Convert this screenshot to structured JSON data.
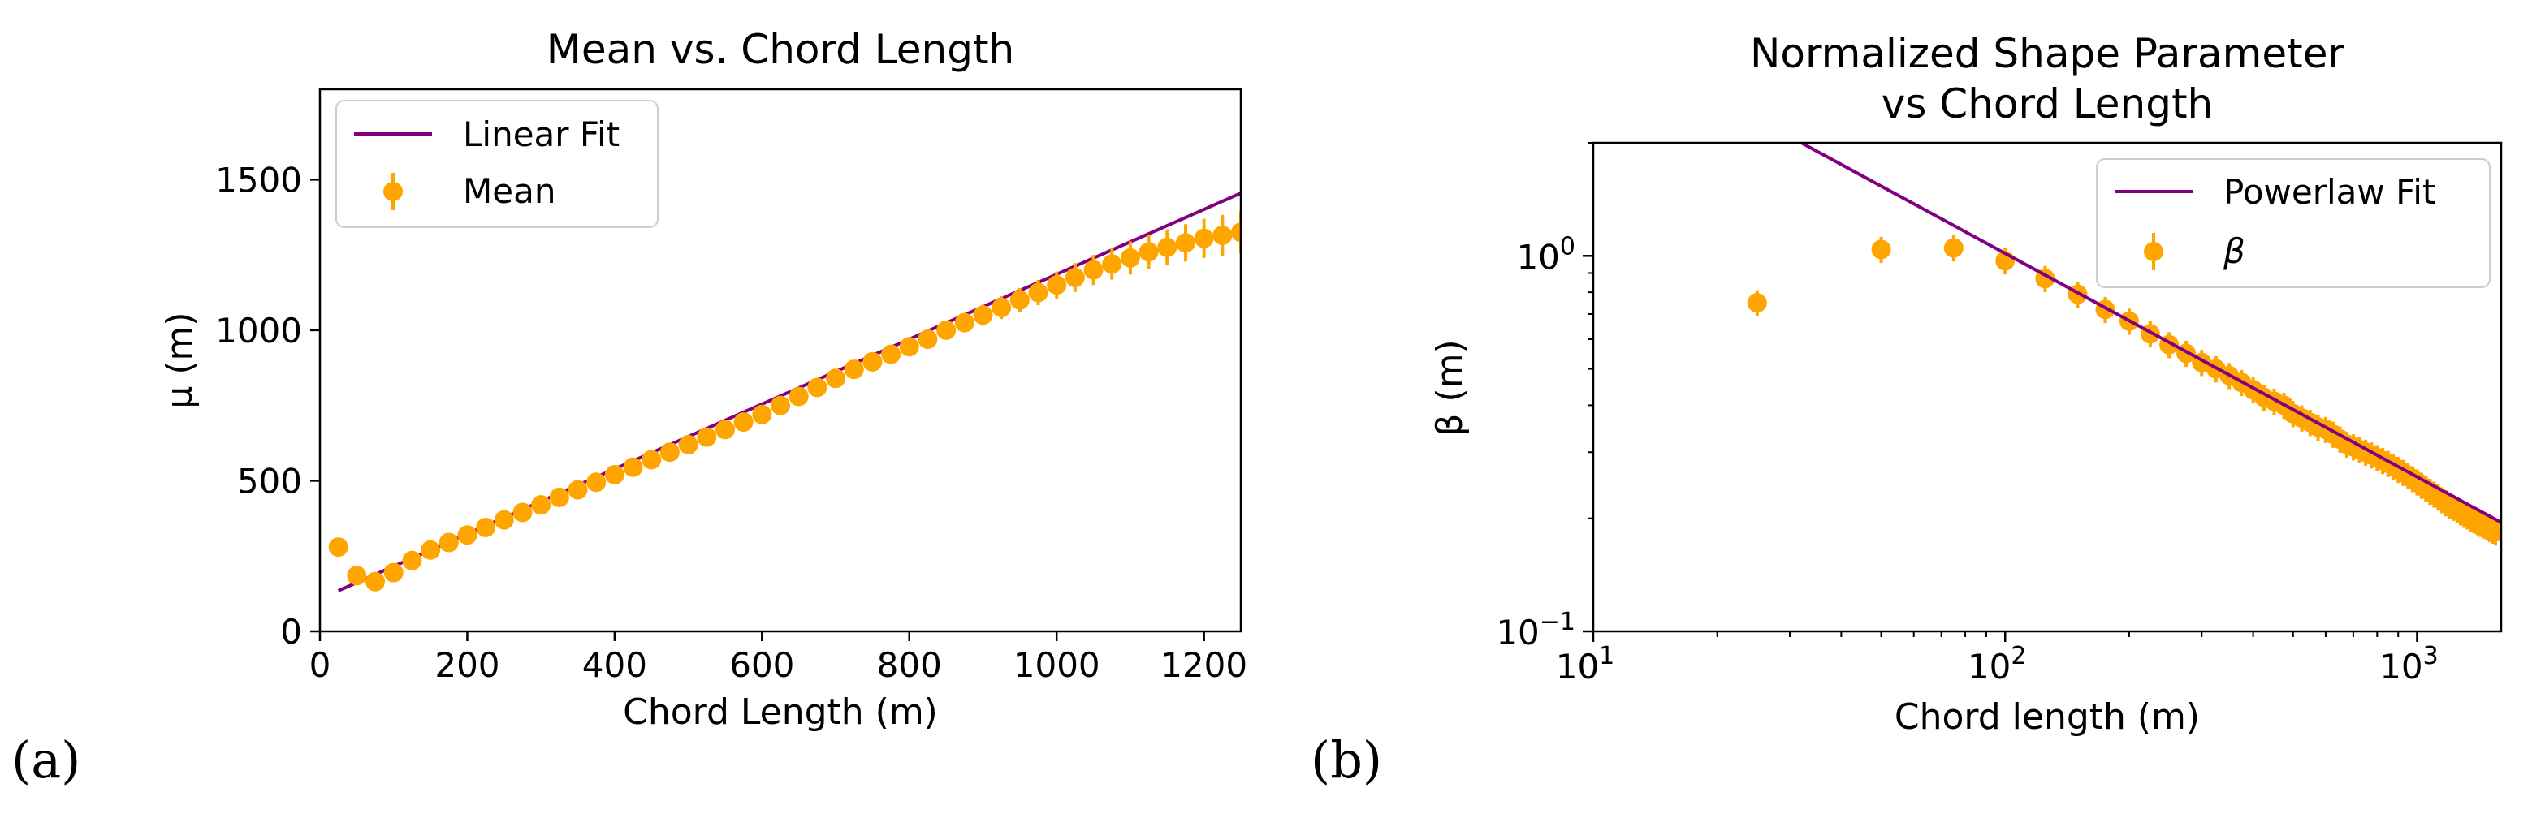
{
  "chart_data": [
    {
      "type": "scatter",
      "panel_label": "(a)",
      "title": "Mean vs. Chord Length",
      "xlabel": "Chord Length (m)",
      "ylabel": "μ (m)",
      "xlim": [
        0,
        1250
      ],
      "ylim": [
        0,
        1800
      ],
      "xticks": [
        0,
        200,
        400,
        600,
        800,
        1000,
        1200
      ],
      "xtick_labels": [
        "0",
        "200",
        "400",
        "600",
        "800",
        "1000",
        "1200"
      ],
      "yticks": [
        0,
        500,
        1000,
        1500
      ],
      "ytick_labels": [
        "0",
        "500",
        "1000",
        "1500"
      ],
      "legend_position": "top-left",
      "series": [
        {
          "name": "Linear Fit",
          "kind": "line",
          "color": "#800080",
          "x": [
            25,
            1250
          ],
          "y": [
            135,
            1455
          ]
        },
        {
          "name": "Mean",
          "kind": "errorbar",
          "color": "#FFA500",
          "x": [
            25,
            50,
            75,
            100,
            125,
            150,
            175,
            200,
            225,
            250,
            275,
            300,
            325,
            350,
            375,
            400,
            425,
            450,
            475,
            500,
            525,
            550,
            575,
            600,
            625,
            650,
            675,
            700,
            725,
            750,
            775,
            800,
            825,
            850,
            875,
            900,
            925,
            950,
            975,
            1000,
            1025,
            1050,
            1075,
            1100,
            1125,
            1150,
            1175,
            1200,
            1225,
            1250
          ],
          "y": [
            280,
            185,
            165,
            195,
            235,
            270,
            295,
            320,
            345,
            370,
            395,
            420,
            445,
            470,
            495,
            520,
            545,
            570,
            595,
            620,
            645,
            670,
            695,
            720,
            750,
            780,
            810,
            840,
            870,
            895,
            920,
            945,
            970,
            1000,
            1025,
            1050,
            1075,
            1100,
            1125,
            1150,
            1175,
            1200,
            1220,
            1240,
            1260,
            1275,
            1290,
            1305,
            1315,
            1325
          ],
          "err": [
            20,
            15,
            15,
            15,
            15,
            15,
            15,
            15,
            15,
            15,
            15,
            15,
            15,
            15,
            15,
            15,
            15,
            15,
            15,
            15,
            15,
            18,
            18,
            18,
            20,
            20,
            20,
            22,
            22,
            22,
            25,
            25,
            28,
            30,
            32,
            35,
            38,
            40,
            42,
            45,
            48,
            50,
            52,
            55,
            58,
            60,
            62,
            65,
            68,
            70
          ]
        }
      ]
    },
    {
      "type": "scatter",
      "panel_label": "(b)",
      "title": "Normalized Shape Parameter\nvs Chord Length",
      "title_lines": [
        "Normalized Shape Parameter",
        "vs Chord Length"
      ],
      "xlabel": "Chord length (m)",
      "ylabel": "β (m)",
      "xscale": "log",
      "yscale": "log",
      "xlim": [
        10,
        1600
      ],
      "ylim": [
        0.1,
        2.0
      ],
      "xticks": [
        10,
        100,
        1000
      ],
      "xtick_labels": [
        {
          "base": "10",
          "exp": "1"
        },
        {
          "base": "10",
          "exp": "2"
        },
        {
          "base": "10",
          "exp": "3"
        }
      ],
      "yticks": [
        0.1,
        1
      ],
      "ytick_labels": [
        {
          "base": "10",
          "exp": "−1"
        },
        {
          "base": "10",
          "exp": "0"
        }
      ],
      "legend_position": "top-right",
      "series": [
        {
          "name": "Powerlaw Fit",
          "kind": "line",
          "color": "#800080",
          "x": [
            32,
            1600
          ],
          "y": [
            2.0,
            0.195
          ]
        },
        {
          "name": "β",
          "kind": "errorbar",
          "color": "#FFA500",
          "x": [
            25,
            50,
            75,
            100,
            125,
            150,
            175,
            200,
            225,
            250,
            275,
            300,
            325,
            350,
            375,
            400,
            425,
            450,
            475,
            500,
            525,
            550,
            575,
            600,
            625,
            650,
            675,
            700,
            725,
            750,
            775,
            800,
            825,
            850,
            875,
            900,
            925,
            950,
            975,
            1000,
            1025,
            1050,
            1075,
            1100,
            1125,
            1150,
            1175,
            1200,
            1225,
            1250,
            1275,
            1300,
            1325,
            1350,
            1375,
            1400,
            1425,
            1450,
            1475,
            1500,
            1525,
            1550
          ],
          "y": [
            0.75,
            1.04,
            1.05,
            0.97,
            0.87,
            0.79,
            0.72,
            0.67,
            0.62,
            0.58,
            0.55,
            0.52,
            0.5,
            0.48,
            0.46,
            0.44,
            0.42,
            0.41,
            0.4,
            0.38,
            0.37,
            0.36,
            0.35,
            0.345,
            0.335,
            0.325,
            0.315,
            0.31,
            0.305,
            0.3,
            0.295,
            0.29,
            0.285,
            0.28,
            0.275,
            0.27,
            0.265,
            0.26,
            0.255,
            0.25,
            0.245,
            0.24,
            0.236,
            0.232,
            0.228,
            0.224,
            0.22,
            0.217,
            0.214,
            0.211,
            0.208,
            0.205,
            0.203,
            0.2,
            0.198,
            0.196,
            0.194,
            0.192,
            0.19,
            0.188,
            0.186,
            0.184
          ],
          "err_frac": 0.08
        }
      ]
    }
  ]
}
